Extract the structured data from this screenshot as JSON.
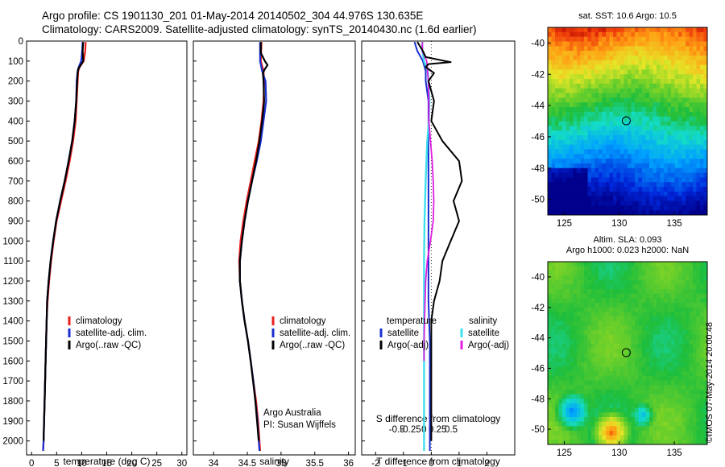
{
  "header": {
    "line1": "Argo profile: CS 1901130_201 01-May-2014 20140502_304 44.976S 130.635E",
    "line2": "Climatology: CARS2009. Satellite-adjusted climatology: synTS_20140430.nc (1.6d earlier)"
  },
  "colors": {
    "climatology": "#e8201c",
    "satellite": "#1a2fd0",
    "argo": "#000000",
    "satellite_diff": "#3fe0ee",
    "argo_sal_diff": "#e020e0"
  },
  "chart_data": [
    {
      "type": "line",
      "id": "temperature-profile",
      "xlabel": "temperature (deg C)",
      "ylabel": "",
      "xlim": [
        -1,
        31
      ],
      "ylim": [
        0,
        2070
      ],
      "xticks": [
        "0",
        "5",
        "10",
        "15",
        "20",
        "25",
        "30"
      ],
      "xtick_values": [
        0,
        5,
        10,
        15,
        20,
        25,
        30
      ],
      "yticks": [
        "0",
        "100",
        "200",
        "300",
        "400",
        "500",
        "600",
        "700",
        "800",
        "900",
        "1000",
        "1100",
        "1200",
        "1300",
        "1400",
        "1500",
        "1600",
        "1700",
        "1800",
        "1900",
        "2000"
      ],
      "ytick_values": [
        0,
        100,
        200,
        300,
        400,
        500,
        600,
        700,
        800,
        900,
        1000,
        1100,
        1200,
        1300,
        1400,
        1500,
        1600,
        1700,
        1800,
        1900,
        2000
      ],
      "legend": [
        "climatology",
        "satellite-adj. clim.",
        "Argo(..raw -QC)"
      ],
      "legend_position": "lower-center",
      "series": [
        {
          "name": "climatology",
          "color_key": "climatology",
          "depth": [
            5,
            50,
            100,
            130,
            150,
            200,
            300,
            400,
            500,
            600,
            700,
            800,
            900,
            1000,
            1100,
            1200,
            1300,
            1400,
            1600,
            1800,
            2000,
            2050
          ],
          "values": [
            10.8,
            10.7,
            10.4,
            9.6,
            9.3,
            9.2,
            9.0,
            8.8,
            8.3,
            7.6,
            6.8,
            5.9,
            5.0,
            4.4,
            3.9,
            3.5,
            3.2,
            3.0,
            2.8,
            2.6,
            2.4,
            2.3
          ]
        },
        {
          "name": "satellite-adj. clim.",
          "color_key": "satellite",
          "depth": [
            5,
            50,
            100,
            130,
            150,
            200,
            300,
            400,
            500,
            600,
            700,
            800,
            900,
            1000,
            1100,
            1200,
            1300,
            1400,
            1600,
            1800,
            2000,
            2050
          ],
          "values": [
            10.2,
            10.1,
            9.9,
            9.4,
            9.2,
            9.0,
            8.9,
            8.6,
            8.1,
            7.4,
            6.6,
            5.7,
            4.9,
            4.3,
            3.8,
            3.4,
            3.1,
            3.0,
            2.8,
            2.6,
            2.4,
            2.3
          ]
        },
        {
          "name": "Argo(..raw -QC)",
          "color_key": "argo",
          "depth": [
            5,
            50,
            100,
            120,
            140,
            160,
            200,
            300,
            400,
            500,
            600,
            700,
            800,
            900,
            1000,
            1100,
            1200,
            1300,
            1400,
            1600,
            1800,
            2000
          ],
          "values": [
            10.3,
            10.2,
            10.3,
            9.8,
            9.3,
            9.2,
            9.1,
            8.9,
            8.6,
            8.1,
            7.4,
            6.6,
            5.7,
            4.9,
            4.3,
            3.8,
            3.4,
            3.1,
            3.0,
            2.8,
            2.6,
            2.4
          ]
        }
      ]
    },
    {
      "type": "line",
      "id": "salinity-profile",
      "xlabel": "salinity",
      "xlim": [
        33.7,
        36.1
      ],
      "ylim": [
        0,
        2070
      ],
      "xticks": [
        "34",
        "34.5",
        "35",
        "35.5",
        "36"
      ],
      "xtick_values": [
        34,
        34.5,
        35,
        35.5,
        36
      ],
      "legend": [
        "climatology",
        "satellite-adj. clim.",
        "Argo(..raw -QC)"
      ],
      "legend_position": "lower-right",
      "annotation": [
        "Argo Australia",
        "PI: Susan Wijffels"
      ],
      "series": [
        {
          "name": "climatology",
          "color_key": "climatology",
          "depth": [
            5,
            100,
            150,
            200,
            300,
            400,
            500,
            600,
            700,
            800,
            900,
            1000,
            1100,
            1200,
            1300,
            1400,
            1500,
            1600,
            1700,
            1800,
            1900,
            2000,
            2050
          ],
          "values": [
            34.71,
            34.7,
            34.74,
            34.75,
            34.74,
            34.71,
            34.67,
            34.61,
            34.55,
            34.49,
            34.44,
            34.4,
            34.38,
            34.39,
            34.42,
            34.46,
            34.51,
            34.55,
            34.59,
            34.63,
            34.66,
            34.68,
            34.69
          ]
        },
        {
          "name": "satellite-adj. clim.",
          "color_key": "satellite",
          "depth": [
            5,
            100,
            150,
            200,
            300,
            400,
            500,
            600,
            700,
            800,
            900,
            1000,
            1100,
            1200,
            1300,
            1400,
            1500,
            1600,
            1700,
            1800,
            1900,
            2000,
            2050
          ],
          "values": [
            34.69,
            34.69,
            34.72,
            34.77,
            34.78,
            34.74,
            34.7,
            34.64,
            34.57,
            34.51,
            34.46,
            34.42,
            34.39,
            34.39,
            34.42,
            34.46,
            34.51,
            34.55,
            34.59,
            34.62,
            34.65,
            34.67,
            34.68
          ]
        },
        {
          "name": "Argo(..raw -QC)",
          "color_key": "argo",
          "depth": [
            5,
            60,
            100,
            120,
            140,
            160,
            200,
            300,
            400,
            500,
            600,
            700,
            800,
            900,
            1000,
            1100,
            1200,
            1300,
            1400,
            1500,
            1600,
            1800,
            2000
          ],
          "values": [
            34.7,
            34.7,
            34.76,
            34.8,
            34.76,
            34.73,
            34.74,
            34.75,
            34.72,
            34.68,
            34.63,
            34.57,
            34.51,
            34.46,
            34.42,
            34.39,
            34.39,
            34.42,
            34.46,
            34.51,
            34.55,
            34.62,
            34.67
          ]
        }
      ]
    },
    {
      "type": "line",
      "id": "difference-profile",
      "xlabel": "T difference from climatology",
      "xlabel_top": "S difference from climatology",
      "xlim": [
        -2.5,
        3
      ],
      "ylim": [
        0,
        2070
      ],
      "xticks": [
        "-2",
        "-1",
        "0",
        "1",
        "2"
      ],
      "xtick_values": [
        -2,
        -1,
        0,
        1,
        2
      ],
      "sal_xticks": [
        "-0.5",
        "-0.25",
        "0",
        "0.25",
        "0.5"
      ],
      "sal_xtick_values": [
        -0.5,
        -0.25,
        0,
        0.25,
        0.5
      ],
      "legend_headers": [
        "temperature",
        "salinity"
      ],
      "legend": [
        "satellite",
        "Argo(-adj)",
        "satellite",
        "Argo(-adj)"
      ],
      "legend_position": "lower-center",
      "series": [
        {
          "name": "temperature satellite",
          "color_key": "satellite",
          "depth": [
            5,
            50,
            100,
            150,
            200,
            300,
            400,
            500,
            700,
            900,
            1100,
            1300,
            1500,
            1700,
            1900,
            2050
          ],
          "values": [
            -0.6,
            -0.5,
            -0.3,
            -0.2,
            -0.2,
            -0.1,
            -0.1,
            -0.1,
            -0.1,
            -0.1,
            -0.1,
            -0.1,
            -0.05,
            -0.05,
            -0.05,
            -0.05
          ]
        },
        {
          "name": "temperature Argo(-adj)",
          "color_key": "argo",
          "depth": [
            5,
            50,
            80,
            100,
            105,
            115,
            130,
            160,
            200,
            300,
            400,
            500,
            600,
            700,
            800,
            850,
            900,
            1000,
            1100,
            1200,
            1300,
            1400,
            1500,
            1700,
            1900,
            2000
          ],
          "values": [
            -0.5,
            -0.3,
            -0.2,
            0.5,
            0.7,
            -0.1,
            -0.2,
            0.1,
            -0.1,
            0.1,
            0.0,
            0.4,
            1.0,
            1.1,
            0.8,
            0.9,
            1.0,
            0.7,
            0.4,
            0.3,
            0.1,
            0.0,
            0.0,
            0.0,
            0.0,
            0.0
          ]
        },
        {
          "name": "salinity satellite",
          "color_key": "satellite_diff",
          "depth": [
            5,
            50,
            100,
            150,
            200,
            300,
            400,
            500,
            700,
            900,
            1100,
            1300,
            1500,
            1700,
            1900,
            2050
          ],
          "values": [
            -0.03,
            -0.03,
            0.0,
            0.07,
            0.08,
            0.1,
            0.09,
            0.06,
            0.03,
            0.01,
            0.0,
            0.0,
            0.0,
            0.0,
            0.0,
            0.0
          ]
        },
        {
          "name": "salinity Argo(-adj)",
          "color_key": "argo_sal_diff",
          "depth": [
            5,
            50,
            100,
            200,
            300,
            400,
            500,
            600,
            700,
            800,
            900,
            1000,
            1100,
            1200,
            1300,
            1400,
            1500,
            1600
          ],
          "values": [
            -0.03,
            -0.03,
            0.05,
            0.08,
            0.09,
            0.09,
            0.12,
            0.15,
            0.17,
            0.18,
            0.17,
            0.12,
            0.06,
            0.03,
            0.02,
            0.01,
            0.0,
            0.0
          ]
        }
      ]
    },
    {
      "type": "heatmap",
      "id": "sst-map",
      "title": "sat. SST: 10.6 Argo: 10.5",
      "xlim": [
        123.5,
        138
      ],
      "ylim": [
        -51,
        -39
      ],
      "xticks": [
        "125",
        "130",
        "135"
      ],
      "xtick_values": [
        125,
        130,
        135
      ],
      "yticks": [
        "-40",
        "-42",
        "-44",
        "-46",
        "-48",
        "-50"
      ],
      "ytick_values": [
        -40,
        -42,
        -44,
        -46,
        -48,
        -50
      ],
      "marker": {
        "lon": 130.635,
        "lat": -44.976
      }
    },
    {
      "type": "heatmap",
      "id": "sla-map",
      "title": "Altim. SLA: 0.093",
      "subtitle": "Argo h1000: 0.023 h2000: NaN",
      "xlim": [
        123.5,
        138
      ],
      "ylim": [
        -51,
        -39
      ],
      "xticks": [
        "125",
        "130",
        "135"
      ],
      "xtick_values": [
        125,
        130,
        135
      ],
      "yticks": [
        "-40",
        "-42",
        "-44",
        "-46",
        "-48",
        "-50"
      ],
      "ytick_values": [
        -40,
        -42,
        -44,
        -46,
        -48,
        -50
      ],
      "marker": {
        "lon": 130.635,
        "lat": -44.976
      }
    }
  ],
  "footer": {
    "stamp": "©IMOS 07-May-2014 20:00:48"
  }
}
